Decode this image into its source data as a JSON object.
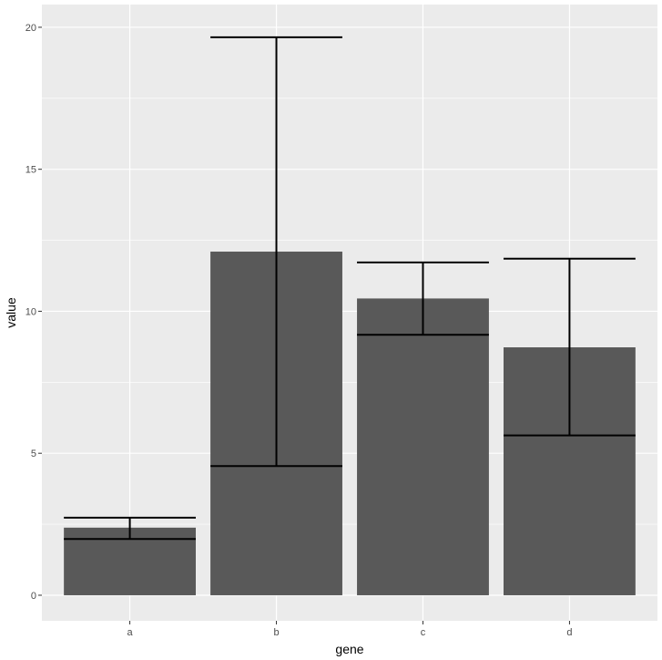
{
  "chart_data": {
    "type": "bar",
    "xlabel": "gene",
    "ylabel": "value",
    "categories": [
      "a",
      "b",
      "c",
      "d"
    ],
    "values": [
      2.38,
      12.1,
      10.45,
      8.73
    ],
    "error_bars": [
      {
        "low": 1.98,
        "high": 2.73
      },
      {
        "low": 4.55,
        "high": 19.65
      },
      {
        "low": 9.17,
        "high": 11.72
      },
      {
        "low": 5.63,
        "high": 11.85
      }
    ],
    "ylim": [
      -0.9,
      20.8
    ],
    "yticks": [
      0,
      5,
      10,
      15,
      20
    ],
    "grid": true,
    "colors": {
      "panel": "#ebebeb",
      "gridline": "#ffffff",
      "bar": "#595959",
      "errorbar": "#000000",
      "tick_text": "#4d4d4d"
    }
  }
}
